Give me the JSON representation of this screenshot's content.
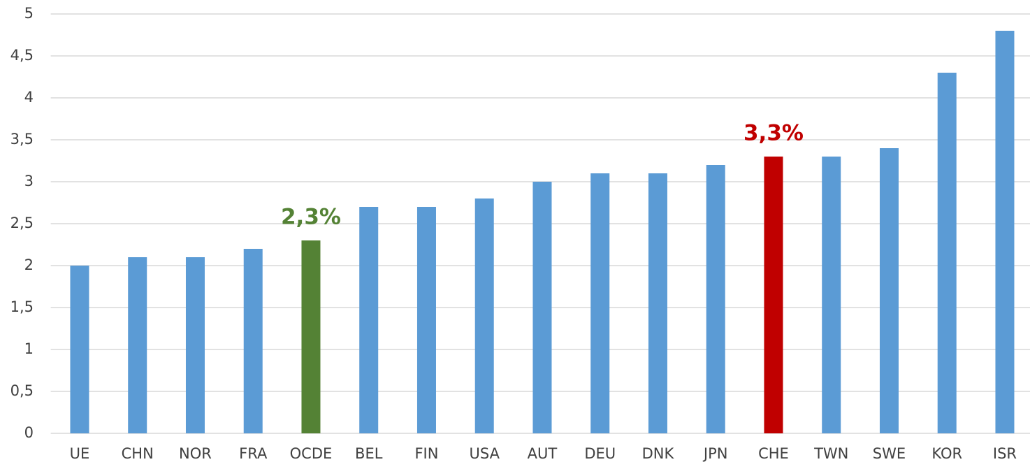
{
  "chart_data": {
    "type": "bar",
    "categories": [
      "UE",
      "CHN",
      "NOR",
      "FRA",
      "OCDE",
      "BEL",
      "FIN",
      "USA",
      "AUT",
      "DEU",
      "DNK",
      "JPN",
      "CHE",
      "TWN",
      "SWE",
      "KOR",
      "ISR"
    ],
    "values": [
      2.0,
      2.1,
      2.1,
      2.2,
      2.3,
      2.7,
      2.7,
      2.8,
      3.0,
      3.1,
      3.1,
      3.2,
      3.3,
      3.3,
      3.4,
      4.3,
      4.8
    ],
    "value_labels": [
      null,
      null,
      null,
      null,
      "2,3%",
      null,
      null,
      null,
      null,
      null,
      null,
      null,
      "3,3%",
      null,
      null,
      null,
      null
    ],
    "colors": [
      "#5b9bd5",
      "#5b9bd5",
      "#5b9bd5",
      "#5b9bd5",
      "#548235",
      "#5b9bd5",
      "#5b9bd5",
      "#5b9bd5",
      "#5b9bd5",
      "#5b9bd5",
      "#5b9bd5",
      "#5b9bd5",
      "#c00000",
      "#5b9bd5",
      "#5b9bd5",
      "#5b9bd5",
      "#5b9bd5"
    ],
    "ylim": [
      0,
      5
    ],
    "yticks": [
      0,
      {
        "value": 0.5,
        "label": "0,5"
      },
      1,
      {
        "value": 1.5,
        "label": "1,5"
      },
      2,
      {
        "value": 2.5,
        "label": "2,5"
      },
      3,
      {
        "value": 3.5,
        "label": "3,5"
      },
      4,
      {
        "value": 4.5,
        "label": "4,5"
      },
      5
    ],
    "grid": true
  }
}
